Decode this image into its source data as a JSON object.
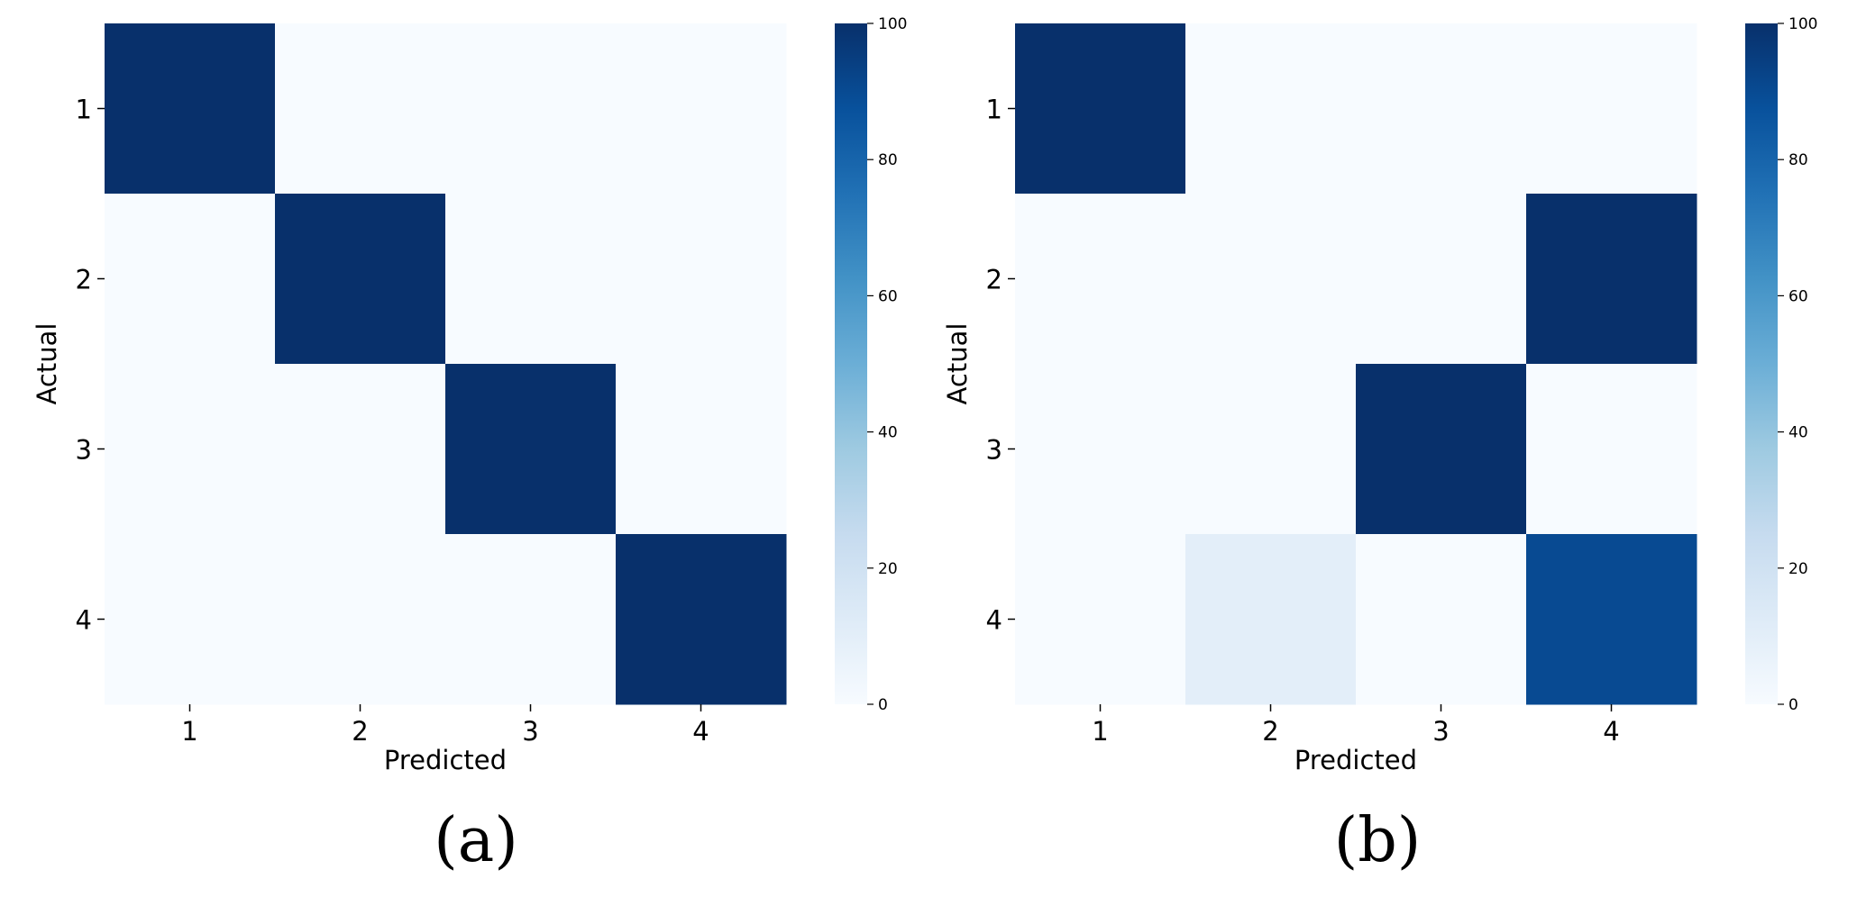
{
  "charts": [
    {
      "caption": "(a)",
      "chart_data": {
        "type": "heatmap",
        "title": "",
        "xlabel": "Predicted",
        "ylabel": "Actual",
        "x_categories": [
          "1",
          "2",
          "3",
          "4"
        ],
        "y_categories": [
          "1",
          "2",
          "3",
          "4"
        ],
        "values": [
          [
            100,
            0,
            0,
            0
          ],
          [
            0,
            100,
            0,
            0
          ],
          [
            0,
            0,
            100,
            0
          ],
          [
            0,
            0,
            0,
            100
          ]
        ],
        "colorbar": {
          "range": [
            0,
            100
          ],
          "ticks": [
            "0",
            "20",
            "40",
            "60",
            "80",
            "100"
          ],
          "colormap": "Blues"
        }
      }
    },
    {
      "caption": "(b)",
      "chart_data": {
        "type": "heatmap",
        "title": "",
        "xlabel": "Predicted",
        "ylabel": "Actual",
        "x_categories": [
          "1",
          "2",
          "3",
          "4"
        ],
        "y_categories": [
          "1",
          "2",
          "3",
          "4"
        ],
        "values": [
          [
            100,
            0,
            0,
            0
          ],
          [
            0,
            0,
            0,
            100
          ],
          [
            0,
            0,
            100,
            0
          ],
          [
            0,
            10,
            0,
            90
          ]
        ],
        "colorbar": {
          "range": [
            0,
            100
          ],
          "ticks": [
            "0",
            "20",
            "40",
            "60",
            "80",
            "100"
          ],
          "colormap": "Blues"
        }
      }
    }
  ]
}
